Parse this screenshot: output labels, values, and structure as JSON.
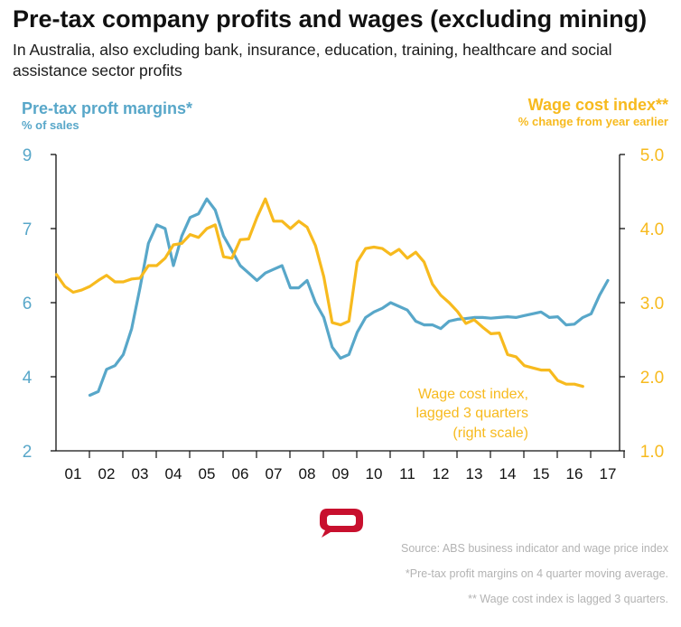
{
  "title": "Pre-tax company profits and wages (excluding mining)",
  "subtitle": "In Australia, also excluding bank, insurance, education, training, healthcare and social assistance sector profits",
  "colors": {
    "left": "#58A7C9",
    "right": "#F7BA1E",
    "axis": "#111111",
    "footnote": "#b3b3b3",
    "logo": "#c8102e"
  },
  "chart_data": {
    "type": "line",
    "left_axis": {
      "title": "Pre-tax proft margins*",
      "unit": "% of sales",
      "ticks": [
        "9",
        "7",
        "6",
        "4",
        "2"
      ]
    },
    "right_axis": {
      "title": "Wage cost index**",
      "unit": "% change from year earlier",
      "ticks": [
        "5.0",
        "4.0",
        "3.0",
        "2.0",
        "1.0"
      ]
    },
    "x_ticks": [
      "01",
      "02",
      "03",
      "04",
      "05",
      "06",
      "07",
      "08",
      "09",
      "10",
      "11",
      "12",
      "13",
      "14",
      "15",
      "16",
      "17"
    ],
    "annotation": [
      "Wage cost index,",
      "lagged 3 quarters",
      "(right scale)"
    ],
    "series": [
      {
        "axis": "left",
        "x": [
          2001.5,
          2001.75,
          2002.0,
          2002.25,
          2002.5,
          2002.75,
          2003.0,
          2003.25,
          2003.5,
          2003.75,
          2004.0,
          2004.25,
          2004.5,
          2004.75,
          2005.0,
          2005.25,
          2005.5,
          2005.75,
          2006.0,
          2006.25,
          2006.5,
          2006.75,
          2007.0,
          2007.25,
          2007.5,
          2007.75,
          2008.0,
          2008.25,
          2008.5,
          2008.75,
          2009.0,
          2009.25,
          2009.5,
          2009.75,
          2010.0,
          2010.25,
          2010.5,
          2010.75,
          2011.0,
          2011.25,
          2011.5,
          2011.75,
          2012.0,
          2012.25,
          2012.5,
          2012.75,
          2013.0,
          2013.25,
          2013.5,
          2013.75,
          2014.0,
          2014.25,
          2014.5,
          2014.75,
          2015.0,
          2015.25,
          2015.5,
          2015.75,
          2016.0,
          2016.25,
          2016.5,
          2016.75,
          2017.0
        ],
        "y": [
          3.5,
          3.6,
          4.2,
          4.3,
          4.6,
          5.3,
          6.2,
          6.8,
          7.1,
          7.0,
          6.5,
          6.9,
          7.3,
          7.4,
          7.8,
          7.5,
          6.9,
          6.7,
          6.5,
          6.4,
          6.3,
          6.4,
          6.45,
          6.5,
          6.2,
          6.2,
          6.3,
          6.0,
          5.6,
          4.8,
          4.5,
          4.6,
          5.2,
          5.6,
          5.75,
          5.85,
          6.0,
          5.9,
          5.8,
          5.5,
          5.4,
          5.4,
          5.3,
          5.5,
          5.55,
          5.57,
          5.6,
          5.6,
          5.58,
          5.6,
          5.62,
          5.6,
          5.65,
          5.7,
          5.75,
          5.6,
          5.62,
          5.4,
          5.42,
          5.6,
          5.7,
          6.1,
          6.3
        ]
      },
      {
        "axis": "right",
        "x": [
          2000.5,
          2000.75,
          2001.0,
          2001.25,
          2001.5,
          2001.75,
          2002.0,
          2002.25,
          2002.5,
          2002.75,
          2003.0,
          2003.25,
          2003.5,
          2003.75,
          2004.0,
          2004.25,
          2004.5,
          2004.75,
          2005.0,
          2005.25,
          2005.5,
          2005.75,
          2006.0,
          2006.25,
          2006.5,
          2006.75,
          2007.0,
          2007.25,
          2007.5,
          2007.75,
          2008.0,
          2008.25,
          2008.5,
          2008.75,
          2009.0,
          2009.25,
          2009.5,
          2009.75,
          2010.0,
          2010.25,
          2010.5,
          2010.75,
          2011.0,
          2011.25,
          2011.5,
          2011.75,
          2012.0,
          2012.25,
          2012.5,
          2012.75,
          2013.0,
          2013.25,
          2013.5,
          2013.75,
          2014.0,
          2014.25,
          2014.5,
          2014.75,
          2015.0,
          2015.25,
          2015.5,
          2015.75,
          2016.0,
          2016.25
        ],
        "y": [
          3.38,
          3.22,
          3.14,
          3.17,
          3.22,
          3.3,
          3.37,
          3.28,
          3.28,
          3.32,
          3.33,
          3.5,
          3.5,
          3.6,
          3.78,
          3.8,
          3.92,
          3.88,
          4.0,
          4.05,
          3.62,
          3.6,
          3.85,
          3.86,
          4.15,
          4.4,
          4.1,
          4.1,
          4.0,
          4.1,
          4.02,
          3.77,
          3.35,
          2.73,
          2.7,
          2.75,
          3.55,
          3.73,
          3.75,
          3.73,
          3.65,
          3.72,
          3.6,
          3.68,
          3.55,
          3.25,
          3.1,
          3.0,
          2.88,
          2.72,
          2.77,
          2.67,
          2.58,
          2.59,
          2.3,
          2.27,
          2.15,
          2.12,
          2.09,
          2.09,
          1.95,
          1.9,
          1.9,
          1.87
        ]
      }
    ]
  },
  "footnotes": [
    "Source: ABS business indicator and wage price index",
    "*Pre-tax profit margins on 4 quarter moving average.",
    "** Wage cost index is lagged 3 quarters."
  ]
}
